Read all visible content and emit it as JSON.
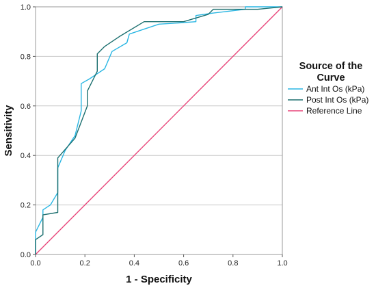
{
  "chart_data": {
    "type": "line",
    "xlabel": "1 - Specificity",
    "ylabel": "Sensitivity",
    "xlim": [
      0,
      1
    ],
    "ylim": [
      0,
      1
    ],
    "x_ticks": [
      "0.0",
      "0.2",
      "0.4",
      "0.6",
      "0.8",
      "1.0"
    ],
    "y_ticks": [
      "0.0",
      "0.2",
      "0.4",
      "0.6",
      "0.8",
      "1.0"
    ],
    "grid": "horizontal",
    "legend": {
      "title_line1": "Source of the",
      "title_line2": "Curve",
      "placement": "right"
    },
    "series": [
      {
        "name": "Ant Int Os (kPa)",
        "color": "#29b6e3",
        "points": [
          [
            0.0,
            0.0
          ],
          [
            0.0,
            0.09
          ],
          [
            0.03,
            0.15
          ],
          [
            0.03,
            0.18
          ],
          [
            0.06,
            0.2
          ],
          [
            0.09,
            0.25
          ],
          [
            0.09,
            0.35
          ],
          [
            0.12,
            0.42
          ],
          [
            0.16,
            0.48
          ],
          [
            0.185,
            0.58
          ],
          [
            0.185,
            0.69
          ],
          [
            0.22,
            0.71
          ],
          [
            0.25,
            0.73
          ],
          [
            0.28,
            0.75
          ],
          [
            0.31,
            0.82
          ],
          [
            0.37,
            0.855
          ],
          [
            0.38,
            0.89
          ],
          [
            0.44,
            0.91
          ],
          [
            0.5,
            0.93
          ],
          [
            0.58,
            0.935
          ],
          [
            0.65,
            0.94
          ],
          [
            0.65,
            0.965
          ],
          [
            0.72,
            0.975
          ],
          [
            0.85,
            0.99
          ],
          [
            0.85,
            1.0
          ],
          [
            1.0,
            1.0
          ]
        ]
      },
      {
        "name": "Post Int Os (kPa)",
        "color": "#1b6f6f",
        "points": [
          [
            0.0,
            0.0
          ],
          [
            0.0,
            0.06
          ],
          [
            0.03,
            0.08
          ],
          [
            0.03,
            0.16
          ],
          [
            0.09,
            0.17
          ],
          [
            0.09,
            0.39
          ],
          [
            0.16,
            0.47
          ],
          [
            0.21,
            0.6
          ],
          [
            0.21,
            0.66
          ],
          [
            0.25,
            0.74
          ],
          [
            0.25,
            0.81
          ],
          [
            0.28,
            0.84
          ],
          [
            0.34,
            0.88
          ],
          [
            0.44,
            0.94
          ],
          [
            0.6,
            0.94
          ],
          [
            0.7,
            0.97
          ],
          [
            0.72,
            0.99
          ],
          [
            0.9,
            0.99
          ],
          [
            1.0,
            1.0
          ]
        ]
      },
      {
        "name": "Reference Line",
        "color": "#e8457a",
        "points": [
          [
            0.0,
            0.0
          ],
          [
            1.0,
            1.0
          ]
        ]
      }
    ]
  }
}
